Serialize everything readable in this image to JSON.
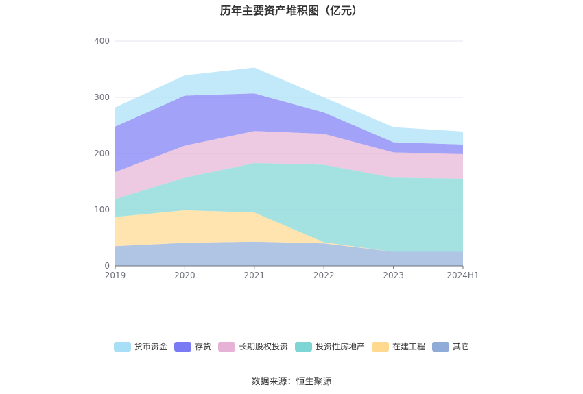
{
  "chart_data": {
    "type": "area",
    "stacked": true,
    "title": "历年主要资产堆积图（亿元）",
    "categories": [
      "2019",
      "2020",
      "2021",
      "2022",
      "2023",
      "2024H1"
    ],
    "ylim": [
      0,
      400
    ],
    "yticks": [
      "0",
      "100",
      "200",
      "300",
      "400"
    ],
    "grid": true,
    "legend_position": "bottom",
    "series": [
      {
        "name": "其它",
        "color": "#8fabd8",
        "values": [
          35,
          41,
          43,
          40,
          25,
          25
        ]
      },
      {
        "name": "在建工程",
        "color": "#ffd98f",
        "values": [
          52,
          58,
          52,
          2,
          0,
          0
        ]
      },
      {
        "name": "投资性房地产",
        "color": "#7dd5d5",
        "values": [
          32,
          58,
          88,
          138,
          132,
          130
        ]
      },
      {
        "name": "长期股权投资",
        "color": "#e6b3d6",
        "values": [
          48,
          57,
          57,
          55,
          45,
          44
        ]
      },
      {
        "name": "存货",
        "color": "#7a7af5",
        "values": [
          81,
          89,
          67,
          38,
          18,
          17
        ]
      },
      {
        "name": "货币资金",
        "color": "#a8dff7",
        "values": [
          34,
          36,
          46,
          27,
          27,
          23
        ]
      }
    ],
    "legend_order": [
      "货币资金",
      "存货",
      "长期股权投资",
      "投资性房地产",
      "在建工程",
      "其它"
    ]
  },
  "source_text": "数据来源：恒生聚源"
}
